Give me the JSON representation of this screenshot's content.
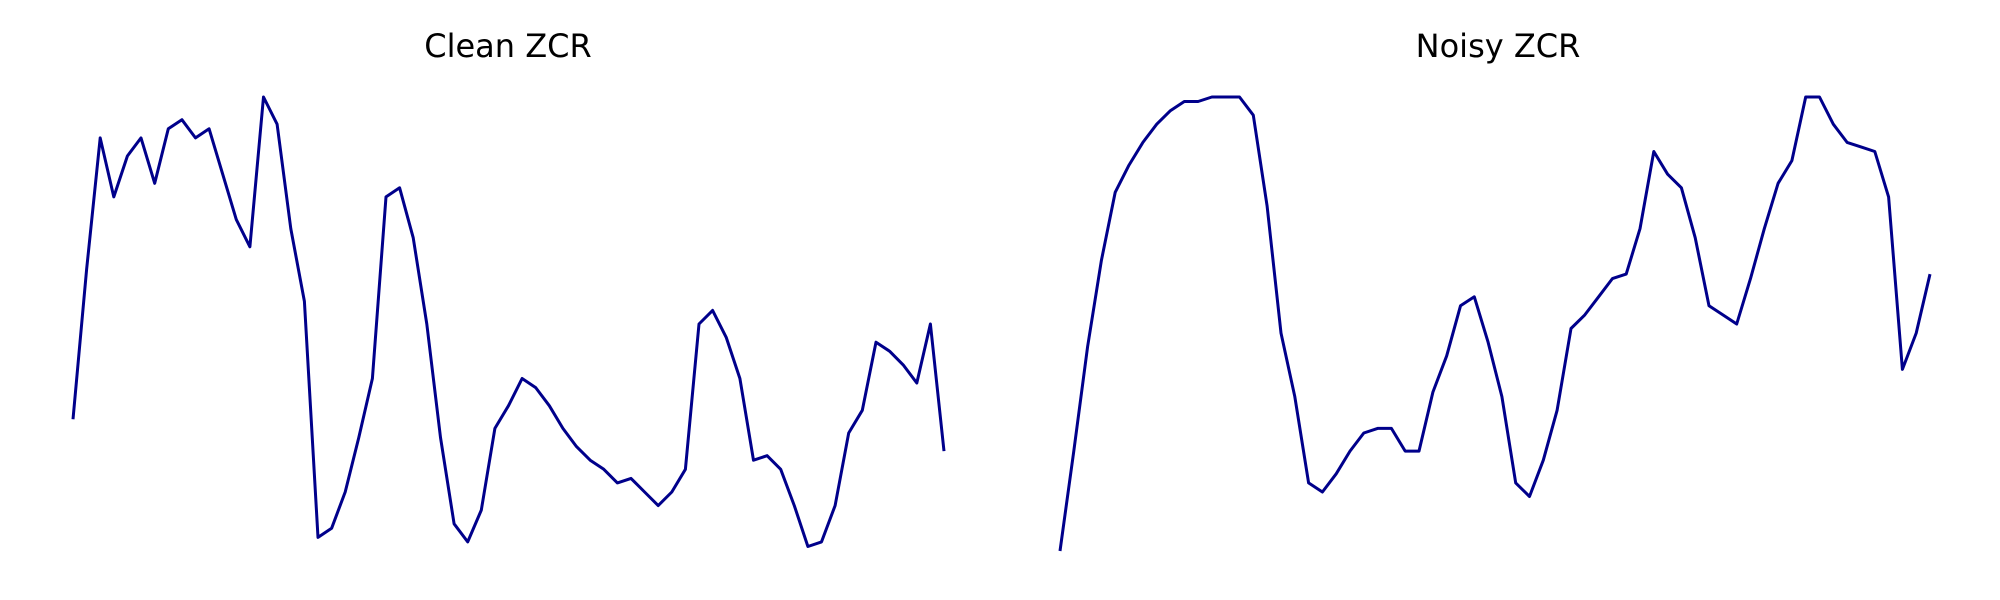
{
  "chart_data": [
    {
      "type": "line",
      "title": "Clean ZCR",
      "xlabel": "",
      "ylabel": "",
      "grid": false,
      "axes_visible": false,
      "x": [
        0,
        1,
        2,
        3,
        4,
        5,
        6,
        7,
        8,
        9,
        10,
        11,
        12,
        13,
        14,
        15,
        16,
        17,
        18,
        19,
        20,
        21,
        22,
        23,
        24,
        25,
        26,
        27,
        28,
        29,
        30,
        31,
        32,
        33,
        34,
        35,
        36,
        37,
        38,
        39,
        40,
        41,
        42,
        43,
        44,
        45,
        46,
        47,
        48,
        49,
        50,
        51,
        52,
        53,
        54,
        55,
        56,
        57,
        58,
        59,
        60,
        61,
        62,
        63,
        64
      ],
      "xlim": [
        0,
        64
      ],
      "ylim": [
        0,
        1
      ],
      "series": [
        {
          "color": "#00008b",
          "values": [
            0.29,
            0.62,
            0.91,
            0.78,
            0.87,
            0.91,
            0.81,
            0.93,
            0.95,
            0.91,
            0.93,
            0.83,
            0.73,
            0.67,
            1.0,
            0.94,
            0.71,
            0.55,
            0.03,
            0.05,
            0.13,
            0.25,
            0.38,
            0.78,
            0.8,
            0.69,
            0.5,
            0.25,
            0.06,
            0.02,
            0.09,
            0.27,
            0.32,
            0.38,
            0.36,
            0.32,
            0.27,
            0.23,
            0.2,
            0.18,
            0.15,
            0.16,
            0.13,
            0.1,
            0.13,
            0.18,
            0.5,
            0.53,
            0.47,
            0.38,
            0.2,
            0.21,
            0.18,
            0.1,
            0.01,
            0.02,
            0.1,
            0.26,
            0.31,
            0.46,
            0.44,
            0.41,
            0.37,
            0.5,
            0.22
          ]
        }
      ]
    },
    {
      "type": "line",
      "title": "Noisy ZCR",
      "xlabel": "",
      "ylabel": "",
      "grid": false,
      "axes_visible": false,
      "x": [
        0,
        1,
        2,
        3,
        4,
        5,
        6,
        7,
        8,
        9,
        10,
        11,
        12,
        13,
        14,
        15,
        16,
        17,
        18,
        19,
        20,
        21,
        22,
        23,
        24,
        25,
        26,
        27,
        28,
        29,
        30,
        31,
        32,
        33,
        34,
        35,
        36,
        37,
        38,
        39,
        40,
        41,
        42,
        43,
        44,
        45,
        46,
        47,
        48,
        49,
        50,
        51,
        52,
        53,
        54,
        55,
        56,
        57,
        58,
        59,
        60,
        61,
        62,
        63
      ],
      "xlim": [
        0,
        63
      ],
      "ylim": [
        0,
        1
      ],
      "series": [
        {
          "color": "#00008b",
          "values": [
            0.0,
            0.22,
            0.45,
            0.64,
            0.79,
            0.85,
            0.9,
            0.94,
            0.97,
            0.99,
            0.99,
            1.0,
            1.0,
            1.0,
            0.96,
            0.76,
            0.48,
            0.34,
            0.15,
            0.13,
            0.17,
            0.22,
            0.26,
            0.27,
            0.27,
            0.22,
            0.22,
            0.35,
            0.43,
            0.54,
            0.56,
            0.46,
            0.34,
            0.15,
            0.12,
            0.2,
            0.31,
            0.49,
            0.52,
            0.56,
            0.6,
            0.61,
            0.71,
            0.88,
            0.83,
            0.8,
            0.69,
            0.54,
            0.52,
            0.5,
            0.6,
            0.71,
            0.81,
            0.86,
            1.0,
            1.0,
            0.94,
            0.9,
            0.89,
            0.88,
            0.78,
            0.4,
            0.48,
            0.61
          ]
        }
      ]
    }
  ]
}
